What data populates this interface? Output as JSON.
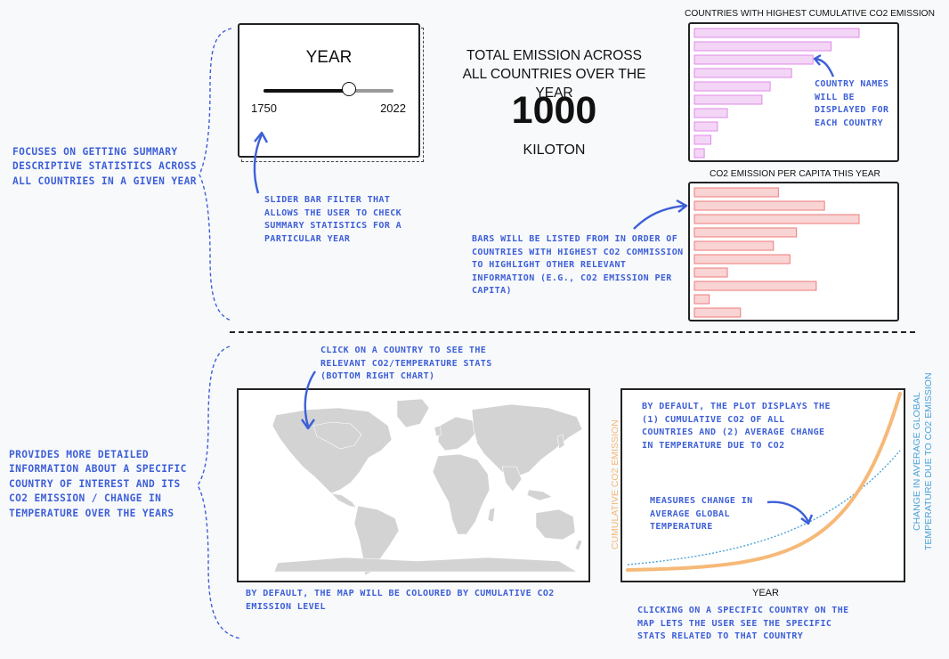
{
  "slider": {
    "title": "YEAR",
    "min_label": "1750",
    "max_label": "2022",
    "value": 0.66
  },
  "total": {
    "title": "TOTAL EMISSION ACROSS ALL COUNTRIES OVER THE YEAR",
    "value": "1000",
    "unit": "KILOTON"
  },
  "top_chart": {
    "title": "COUNTRIES WITH HIGHEST CUMULATIVE CO2 EMISSION",
    "values": [
      100,
      83,
      72,
      59,
      46,
      41,
      20,
      14,
      10,
      6
    ],
    "fill": "#f3d6f6",
    "stroke": "#e089e8"
  },
  "percap_chart": {
    "title": "CO2 EMISSION PER CAPITA THIS YEAR",
    "values": [
      51,
      79,
      100,
      62,
      48,
      58,
      20,
      74,
      9,
      28
    ],
    "fill": "#f9d4d4",
    "stroke": "#ef7a7a"
  },
  "line_chart": {
    "xlabel": "YEAR",
    "ylabel_left": "CUMULATIVE CO2 EMISSION",
    "ylabel_right_line1": "CHANGE IN AVERAGE GLOBAL",
    "ylabel_right_line2": "TEMPERATURE DUE TO CO2 EMISSION",
    "orange_color": "#f6b978",
    "blue_color": "#4da3d8"
  },
  "notes": {
    "top_section": "FOCUSES ON GETTING SUMMARY DESCRIPTIVE STATISTICS ACROSS ALL COUNTRIES IN A GIVEN YEAR",
    "slider_note": "SLIDER BAR FILTER THAT ALLOWS THE USER TO CHECK SUMMARY STATISTICS FOR A PARTICULAR YEAR",
    "country_names": "COUNTRY NAMES WILL BE DISPLAYED FOR EACH COUNTRY",
    "bars_order": "BARS WILL BE LISTED FROM IN ORDER OF COUNTRIES WITH HIGHEST CO2 COMMISSION TO HIGHLIGHT OTHER RELEVANT INFORMATION (E.G., CO2 EMISSION PER CAPITA)",
    "bottom_section": "PROVIDES MORE DETAILED INFORMATION ABOUT A SPECIFIC COUNTRY OF INTEREST AND ITS CO2 EMISSION / CHANGE IN TEMPERATURE OVER THE YEARS",
    "click_country": "CLICK ON A COUNTRY TO SEE THE RELEVANT CO2/TEMPERATURE STATS (BOTTOM RIGHT CHART)",
    "map_default": "BY DEFAULT, THE MAP WILL BE COLOURED BY CUMULATIVE CO2 EMISSION LEVEL",
    "plot_default": "BY DEFAULT, THE PLOT DISPLAYS THE (1) CUMULATIVE CO2 OF ALL COUNTRIES AND (2) AVERAGE CHANGE IN TEMPERATURE DUE TO CO2",
    "measures": "MEASURES CHANGE IN AVERAGE GLOBAL TEMPERATURE",
    "clicking": "CLICKING ON A SPECIFIC COUNTRY ON THE MAP LETS THE USER SEE THE SPECIFIC STATS RELATED TO THAT COUNTRY"
  },
  "annotation_color": "#3d5fd8"
}
